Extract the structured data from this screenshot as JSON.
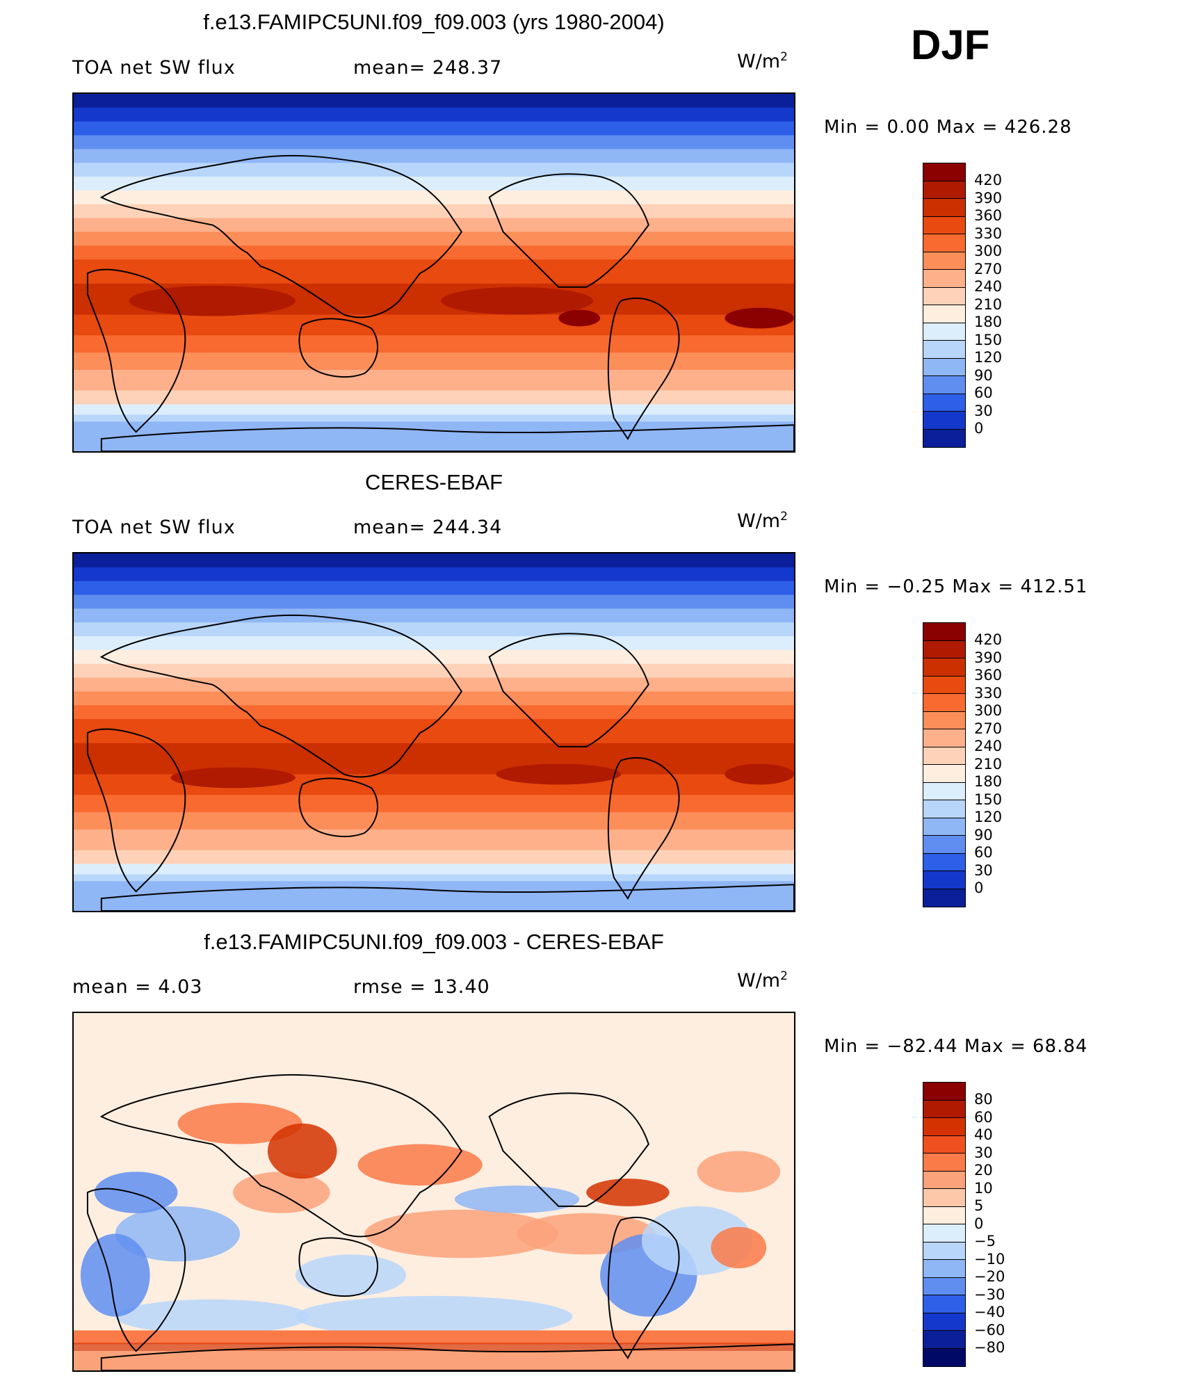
{
  "season": "DJF",
  "panels": [
    {
      "title": "f.e13.FAMIPC5UNI.f09_f09.003 (yrs 1980-2004)",
      "left_text": "TOA net SW flux",
      "center_text": "mean= 248.37",
      "units": "W/m",
      "units_sup": "2",
      "minmax": "Min =    0.00  Max  =  426.28",
      "colorbar": {
        "labels": [
          "420",
          "390",
          "360",
          "330",
          "300",
          "270",
          "240",
          "210",
          "180",
          "150",
          "120",
          "90",
          "60",
          "30",
          "0"
        ],
        "colors": [
          "#8b0000",
          "#b01a00",
          "#cc2f00",
          "#e84a10",
          "#f86a30",
          "#fc8e5a",
          "#fdb08a",
          "#fdd2b8",
          "#fdeee0",
          "#dceefb",
          "#b8d6fa",
          "#8fb6f5",
          "#5f8ef0",
          "#2e5fe8",
          "#1438cc",
          "#0a1f99"
        ]
      },
      "map_kind": "model"
    },
    {
      "title": "CERES-EBAF",
      "left_text": "TOA net SW flux",
      "center_text": "mean= 244.34",
      "units": "W/m",
      "units_sup": "2",
      "minmax": "Min =   −0.25  Max  =  412.51",
      "colorbar": {
        "labels": [
          "420",
          "390",
          "360",
          "330",
          "300",
          "270",
          "240",
          "210",
          "180",
          "150",
          "120",
          "90",
          "60",
          "30",
          "0"
        ],
        "colors": [
          "#8b0000",
          "#b01a00",
          "#cc2f00",
          "#e84a10",
          "#f86a30",
          "#fc8e5a",
          "#fdb08a",
          "#fdd2b8",
          "#fdeee0",
          "#dceefb",
          "#b8d6fa",
          "#8fb6f5",
          "#5f8ef0",
          "#2e5fe8",
          "#1438cc",
          "#0a1f99"
        ]
      },
      "map_kind": "obs"
    },
    {
      "title": "f.e13.FAMIPC5UNI.f09_f09.003 - CERES-EBAF",
      "left_text": "mean =     4.03",
      "center_text": "rmse =    13.40",
      "units": "W/m",
      "units_sup": "2",
      "minmax": "Min = −82.44  Max =    68.84",
      "colorbar": {
        "labels": [
          "80",
          "60",
          "40",
          "30",
          "20",
          "10",
          "5",
          "0",
          "−5",
          "−10",
          "−20",
          "−30",
          "−40",
          "−60",
          "−80"
        ],
        "colors": [
          "#8b0000",
          "#b01a00",
          "#d43200",
          "#f05020",
          "#fa7a48",
          "#fca27a",
          "#fdc8aa",
          "#fdeee0",
          "#dceefb",
          "#b8d6fa",
          "#8fb6f5",
          "#5f8ef0",
          "#2e5fe8",
          "#1438cc",
          "#0a1f99",
          "#000a66"
        ]
      },
      "map_kind": "diff"
    }
  ]
}
